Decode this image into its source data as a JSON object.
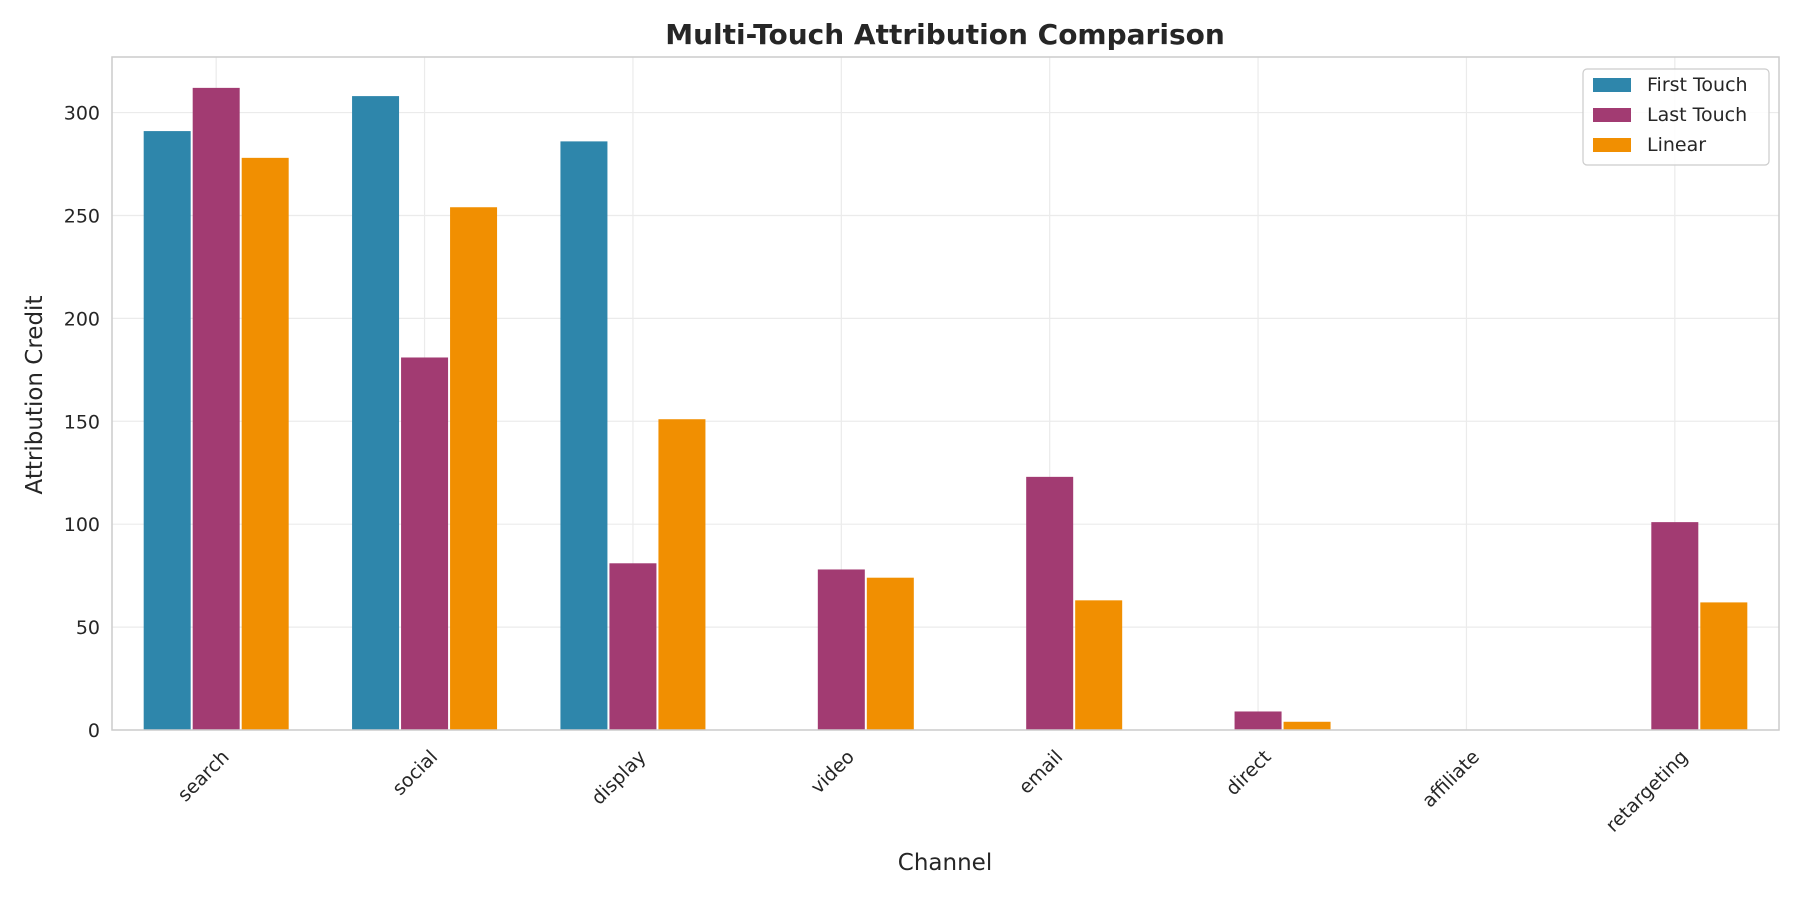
{
  "chart_data": {
    "type": "bar",
    "title": "Multi-Touch Attribution Comparison",
    "xlabel": "Channel",
    "ylabel": "Attribution Credit",
    "categories": [
      "search",
      "social",
      "display",
      "video",
      "email",
      "direct",
      "affiliate",
      "retargeting"
    ],
    "series": [
      {
        "name": "First Touch",
        "color": "#2e86ab",
        "values": [
          291,
          308,
          286,
          0,
          0,
          0,
          0,
          0
        ]
      },
      {
        "name": "Last Touch",
        "color": "#a23b72",
        "values": [
          312,
          181,
          81,
          78,
          123,
          9,
          0,
          101
        ]
      },
      {
        "name": "Linear",
        "color": "#f18f01",
        "values": [
          278,
          254,
          151,
          74,
          63,
          4,
          0,
          62
        ]
      }
    ],
    "ylim": [
      0,
      327
    ],
    "yticks": [
      0,
      50,
      100,
      150,
      200,
      250,
      300
    ],
    "grid": true,
    "legend_position": "top-right"
  }
}
